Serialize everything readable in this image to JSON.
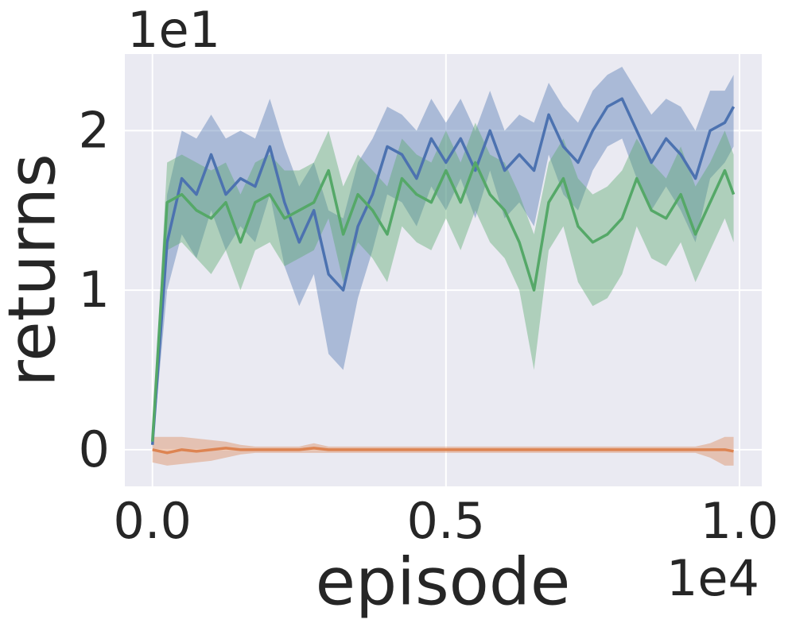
{
  "chart_data": {
    "type": "line",
    "x_offset_label": "1e4",
    "y_offset_label": "1e1",
    "xlabel": "episode",
    "ylabel": "returns",
    "xlim": [
      -0.047,
      1.038
    ],
    "ylim": [
      -0.23,
      2.48
    ],
    "xticks": [
      {
        "value": 0,
        "label": "0.0"
      },
      0.5,
      {
        "value": 1,
        "label": "1.0"
      }
    ],
    "yticks": [
      0,
      1,
      2
    ],
    "grid": true,
    "background": "#eaeaf2",
    "x": [
      0,
      0.025,
      0.05,
      0.075,
      0.1,
      0.125,
      0.15,
      0.175,
      0.2,
      0.225,
      0.25,
      0.275,
      0.3,
      0.325,
      0.35,
      0.375,
      0.4,
      0.425,
      0.45,
      0.475,
      0.5,
      0.525,
      0.55,
      0.575,
      0.6,
      0.625,
      0.65,
      0.675,
      0.7,
      0.725,
      0.75,
      0.775,
      0.8,
      0.825,
      0.85,
      0.875,
      0.9,
      0.925,
      0.95,
      0.975,
      0.99
    ],
    "series": [
      {
        "color": "#4c72b0",
        "values": [
          0.03,
          1.3,
          1.7,
          1.6,
          1.85,
          1.6,
          1.7,
          1.65,
          1.9,
          1.55,
          1.3,
          1.5,
          1.1,
          1.0,
          1.4,
          1.6,
          1.9,
          1.85,
          1.7,
          1.95,
          1.8,
          1.95,
          1.75,
          2.0,
          1.75,
          1.85,
          1.75,
          2.1,
          1.9,
          1.8,
          2.0,
          2.15,
          2.2,
          2.0,
          1.8,
          1.95,
          1.85,
          1.7,
          2.0,
          2.05,
          2.15
        ],
        "upper": [
          0.06,
          1.6,
          2.0,
          1.95,
          2.1,
          1.95,
          2.0,
          1.95,
          2.2,
          1.9,
          1.65,
          1.8,
          1.5,
          1.45,
          1.8,
          1.95,
          2.15,
          2.1,
          2.0,
          2.2,
          2.05,
          2.2,
          2.0,
          2.25,
          2.0,
          2.1,
          2.05,
          2.3,
          2.15,
          2.05,
          2.25,
          2.35,
          2.4,
          2.25,
          2.1,
          2.2,
          2.15,
          2.0,
          2.25,
          2.25,
          2.35
        ],
        "lower": [
          0.0,
          1.0,
          1.35,
          1.2,
          1.5,
          1.25,
          1.4,
          1.3,
          1.6,
          1.15,
          0.9,
          1.1,
          0.6,
          0.5,
          0.95,
          1.25,
          1.6,
          1.55,
          1.4,
          1.65,
          1.5,
          1.7,
          1.45,
          1.75,
          1.45,
          1.55,
          1.4,
          1.85,
          1.6,
          1.5,
          1.75,
          1.9,
          1.95,
          1.7,
          1.5,
          1.65,
          1.5,
          1.3,
          1.7,
          1.8,
          1.9
        ]
      },
      {
        "color": "#55a868",
        "values": [
          0.05,
          1.55,
          1.6,
          1.5,
          1.45,
          1.55,
          1.3,
          1.55,
          1.6,
          1.45,
          1.5,
          1.55,
          1.75,
          1.35,
          1.6,
          1.5,
          1.35,
          1.7,
          1.6,
          1.55,
          1.75,
          1.55,
          1.8,
          1.6,
          1.5,
          1.3,
          1.0,
          1.55,
          1.7,
          1.4,
          1.3,
          1.35,
          1.45,
          1.7,
          1.5,
          1.45,
          1.6,
          1.35,
          1.55,
          1.75,
          1.6
        ],
        "upper": [
          0.08,
          1.8,
          1.85,
          1.8,
          1.75,
          1.8,
          1.6,
          1.8,
          1.85,
          1.75,
          1.75,
          1.8,
          2.0,
          1.65,
          1.85,
          1.75,
          1.65,
          1.95,
          1.85,
          1.8,
          2.0,
          1.8,
          2.05,
          1.85,
          1.8,
          1.6,
          1.35,
          1.8,
          1.95,
          1.7,
          1.6,
          1.65,
          1.75,
          1.95,
          1.8,
          1.7,
          1.9,
          1.65,
          1.8,
          2.0,
          1.85
        ],
        "lower": [
          0.02,
          1.25,
          1.3,
          1.2,
          1.1,
          1.25,
          1.0,
          1.25,
          1.3,
          1.15,
          1.2,
          1.25,
          1.45,
          1.05,
          1.3,
          1.2,
          1.05,
          1.4,
          1.3,
          1.25,
          1.45,
          1.25,
          1.5,
          1.3,
          1.2,
          1.0,
          0.5,
          1.25,
          1.4,
          1.05,
          0.9,
          0.95,
          1.1,
          1.4,
          1.2,
          1.15,
          1.3,
          1.05,
          1.25,
          1.45,
          1.3
        ]
      },
      {
        "color": "#dd8452",
        "values": [
          0.0,
          -0.02,
          0.0,
          -0.01,
          0.0,
          0.01,
          0.0,
          0.0,
          0.0,
          0.0,
          0.0,
          0.01,
          0.0,
          0.0,
          0.0,
          0.0,
          0.0,
          0.0,
          0.0,
          0.0,
          0.0,
          0.0,
          0.0,
          0.0,
          0.0,
          0.0,
          0.0,
          0.0,
          0.0,
          0.0,
          0.0,
          0.0,
          0.0,
          0.0,
          0.0,
          0.0,
          0.0,
          0.0,
          0.0,
          0.0,
          -0.01
        ],
        "upper": [
          0.08,
          0.08,
          0.08,
          0.07,
          0.06,
          0.05,
          0.03,
          0.02,
          0.02,
          0.02,
          0.02,
          0.04,
          0.02,
          0.02,
          0.02,
          0.02,
          0.02,
          0.02,
          0.02,
          0.02,
          0.02,
          0.02,
          0.02,
          0.02,
          0.02,
          0.02,
          0.02,
          0.02,
          0.02,
          0.02,
          0.02,
          0.02,
          0.02,
          0.02,
          0.02,
          0.02,
          0.02,
          0.02,
          0.04,
          0.08,
          0.08
        ],
        "lower": [
          -0.08,
          -0.1,
          -0.09,
          -0.08,
          -0.07,
          -0.05,
          -0.03,
          -0.02,
          -0.02,
          -0.02,
          -0.02,
          -0.02,
          -0.02,
          -0.02,
          -0.02,
          -0.02,
          -0.02,
          -0.02,
          -0.02,
          -0.02,
          -0.02,
          -0.02,
          -0.02,
          -0.02,
          -0.02,
          -0.02,
          -0.02,
          -0.02,
          -0.02,
          -0.02,
          -0.02,
          -0.02,
          -0.02,
          -0.02,
          -0.02,
          -0.02,
          -0.02,
          -0.02,
          -0.05,
          -0.1,
          -0.1
        ]
      }
    ]
  }
}
